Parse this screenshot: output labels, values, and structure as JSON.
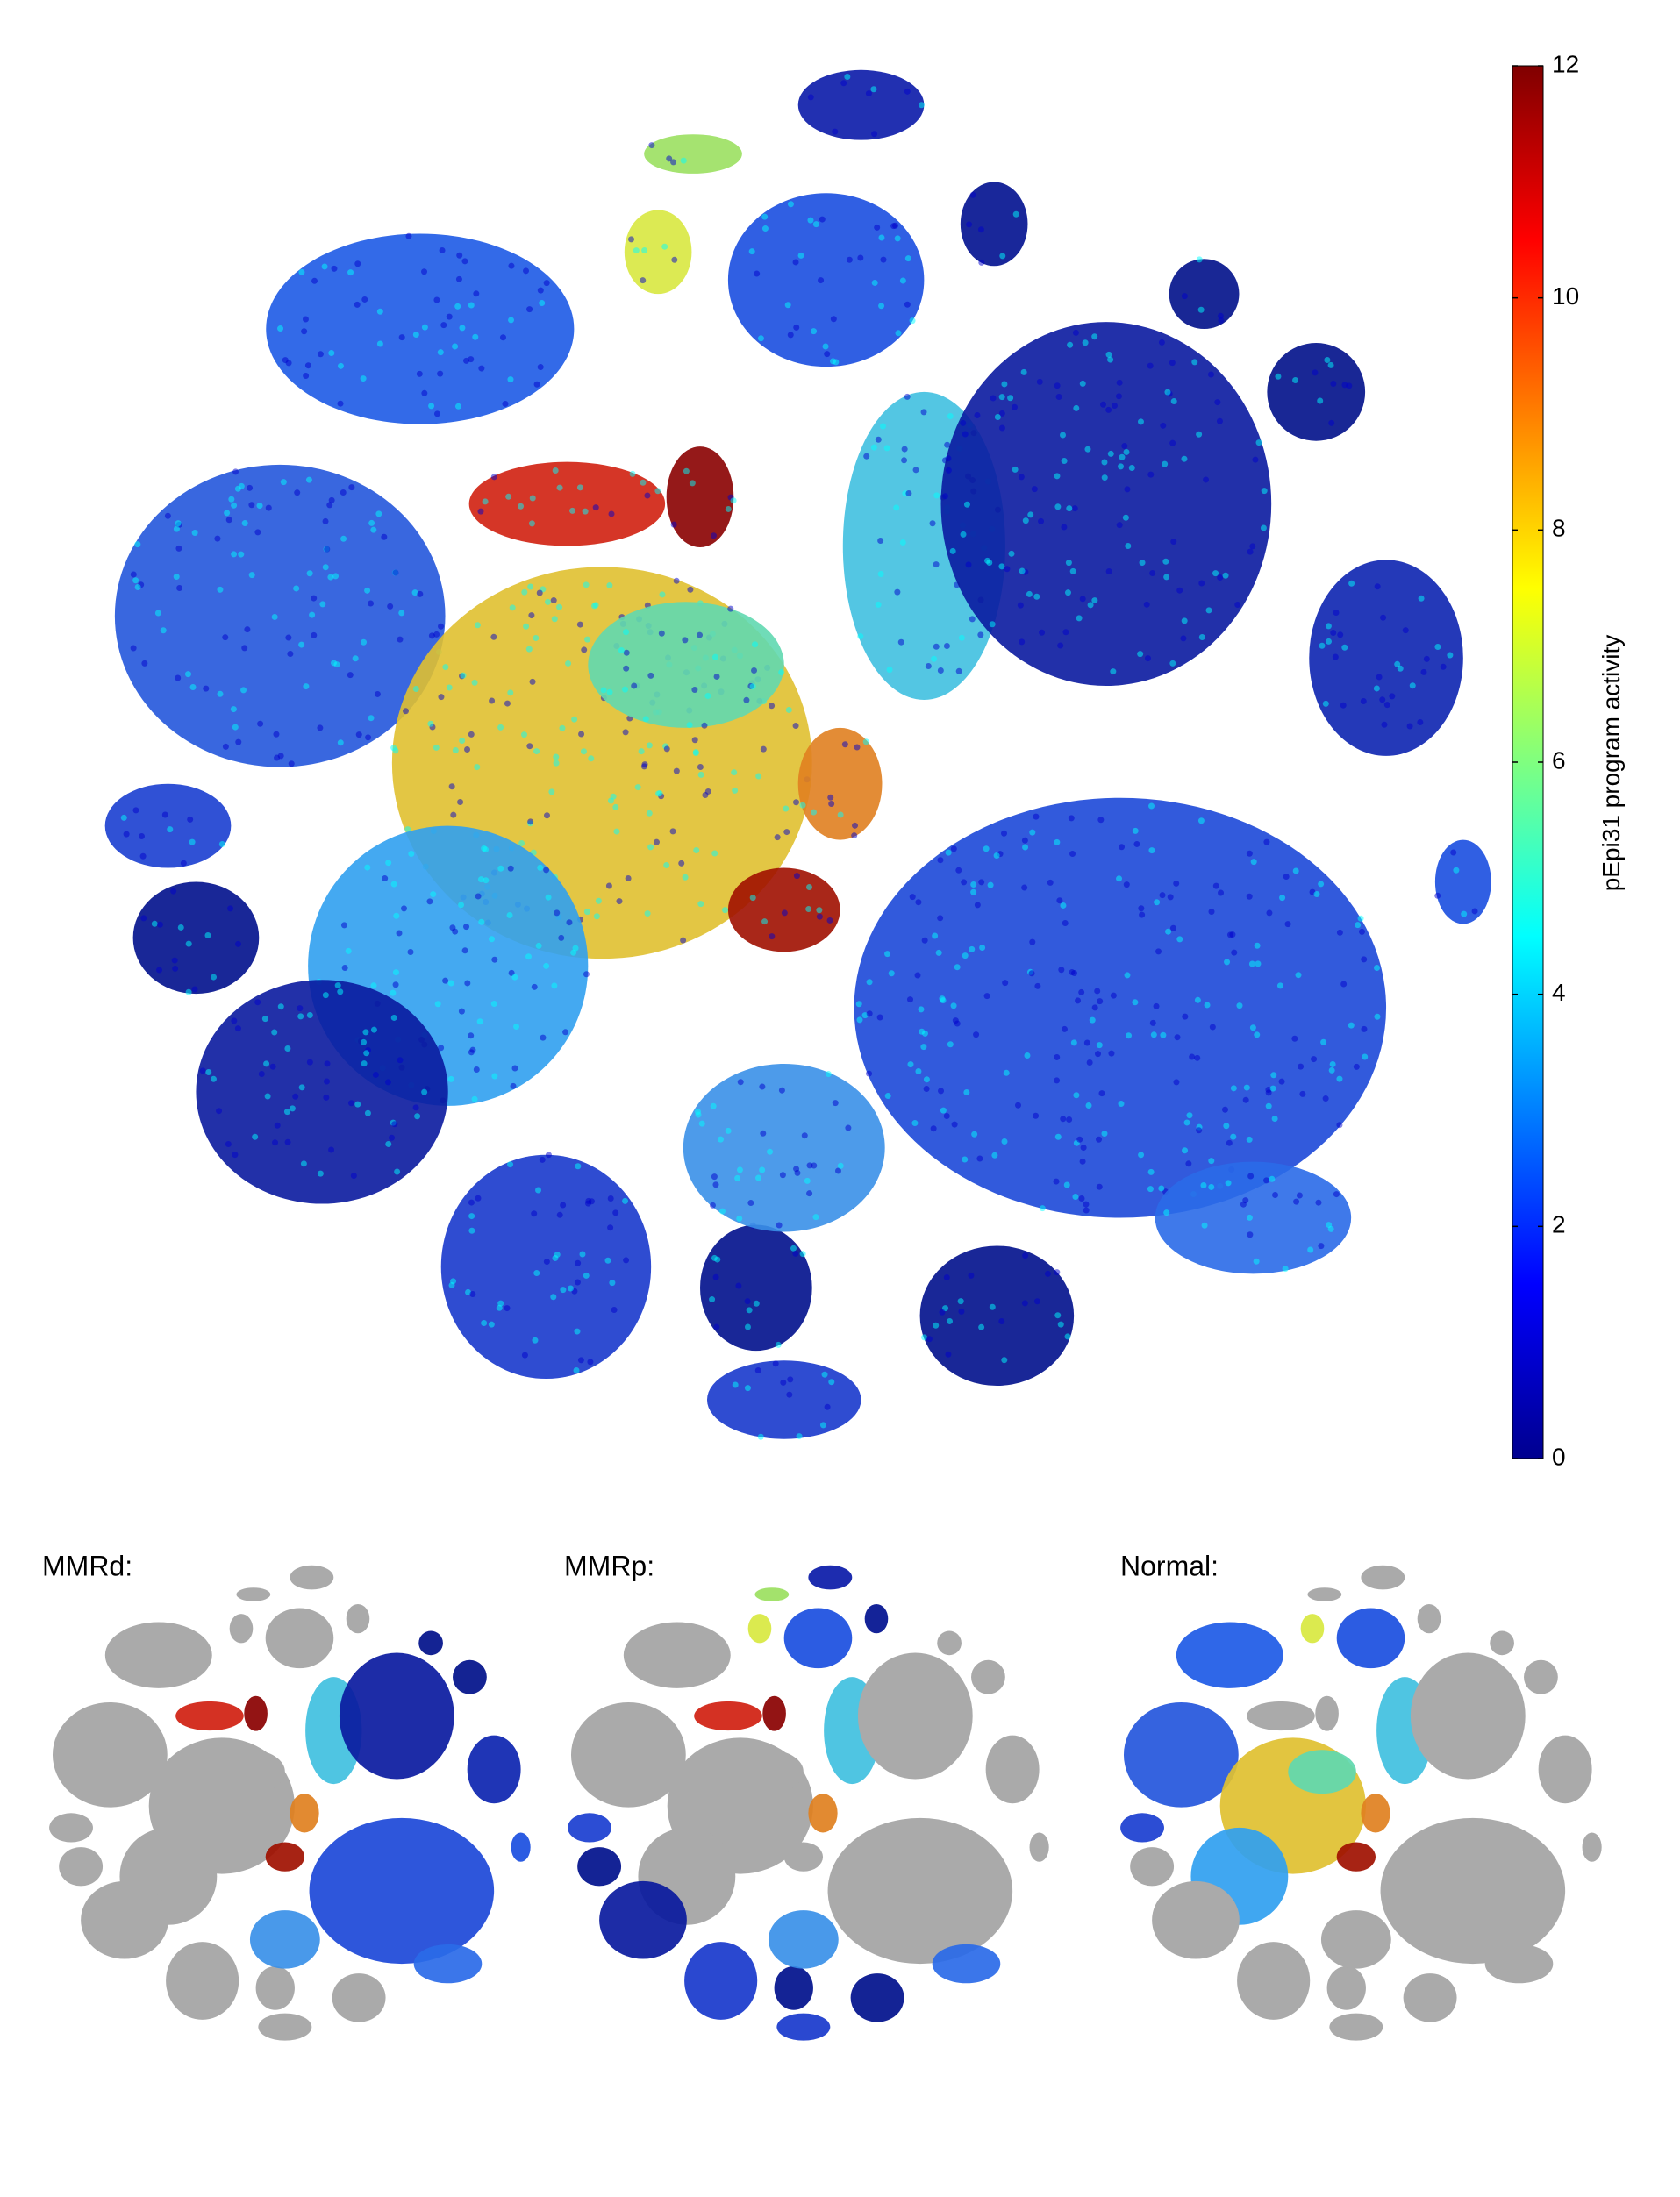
{
  "chart_data": {
    "type": "scatter",
    "colorbar_label": "pEpi31 program activity",
    "clim": [
      0,
      12
    ],
    "cticks": [
      0,
      2,
      4,
      6,
      8,
      10,
      12
    ],
    "panel_titles": [
      "MMRd:",
      "MMRp:",
      "Normal:"
    ]
  }
}
